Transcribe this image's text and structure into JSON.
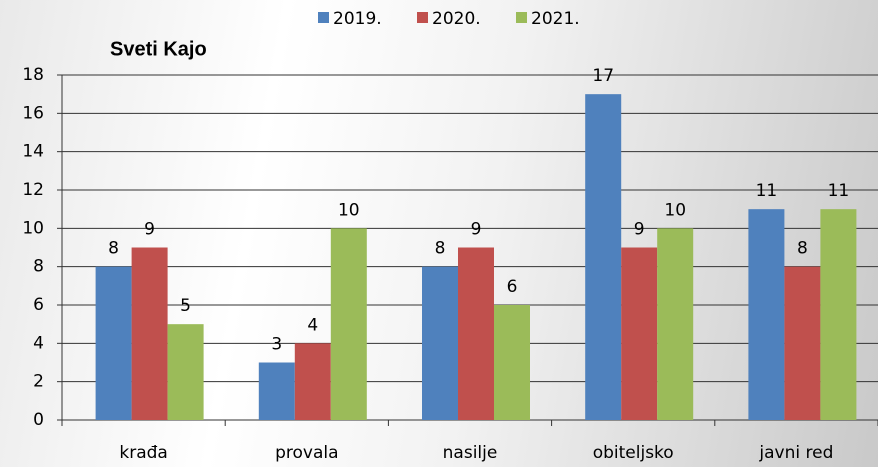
{
  "chart_data": {
    "type": "bar",
    "title": "Sveti Kajo",
    "categories": [
      "krađa",
      "provala",
      "nasilje",
      "obiteljsko",
      "javni red"
    ],
    "series": [
      {
        "name": "2019.",
        "color": "#4f81bd",
        "values": [
          8,
          3,
          8,
          17,
          11
        ]
      },
      {
        "name": "2020.",
        "color": "#c0504d",
        "values": [
          9,
          4,
          9,
          9,
          8
        ]
      },
      {
        "name": "2021.",
        "color": "#9bbb59",
        "values": [
          5,
          10,
          6,
          10,
          11
        ]
      }
    ],
    "ylim": [
      0,
      18
    ],
    "yticks": [
      0,
      2,
      4,
      6,
      8,
      10,
      12,
      14,
      16,
      18
    ],
    "grid": true,
    "legend": "top"
  }
}
